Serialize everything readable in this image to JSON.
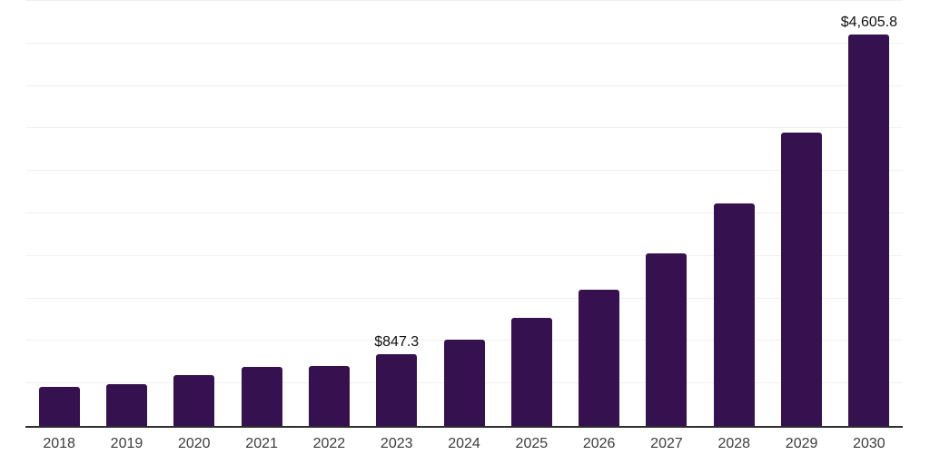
{
  "chart_data": {
    "type": "bar",
    "title": "",
    "xlabel": "",
    "ylabel": "",
    "categories": [
      "2018",
      "2019",
      "2020",
      "2021",
      "2022",
      "2023",
      "2024",
      "2025",
      "2026",
      "2027",
      "2028",
      "2029",
      "2030"
    ],
    "values": [
      460,
      495,
      595,
      690,
      710,
      847.3,
      1020,
      1270,
      1600,
      2030,
      2620,
      3450,
      4605.8
    ],
    "data_labels": [
      {
        "category": "2023",
        "text": "$847.3"
      },
      {
        "category": "2030",
        "text": "$4,605.8"
      }
    ],
    "ylim": [
      0,
      5000
    ],
    "gridline_step": 500,
    "grid": "horizontal",
    "legend_position": "none",
    "y_axis_tick_labels_visible": false
  },
  "style": {
    "bar_color": "#351150",
    "grid_color": "#f0f0f0",
    "axis_line_color": "#2e2e2e",
    "tick_label_color": "#3c3c3c",
    "data_label_color": "#111111",
    "background_color": "#ffffff"
  }
}
